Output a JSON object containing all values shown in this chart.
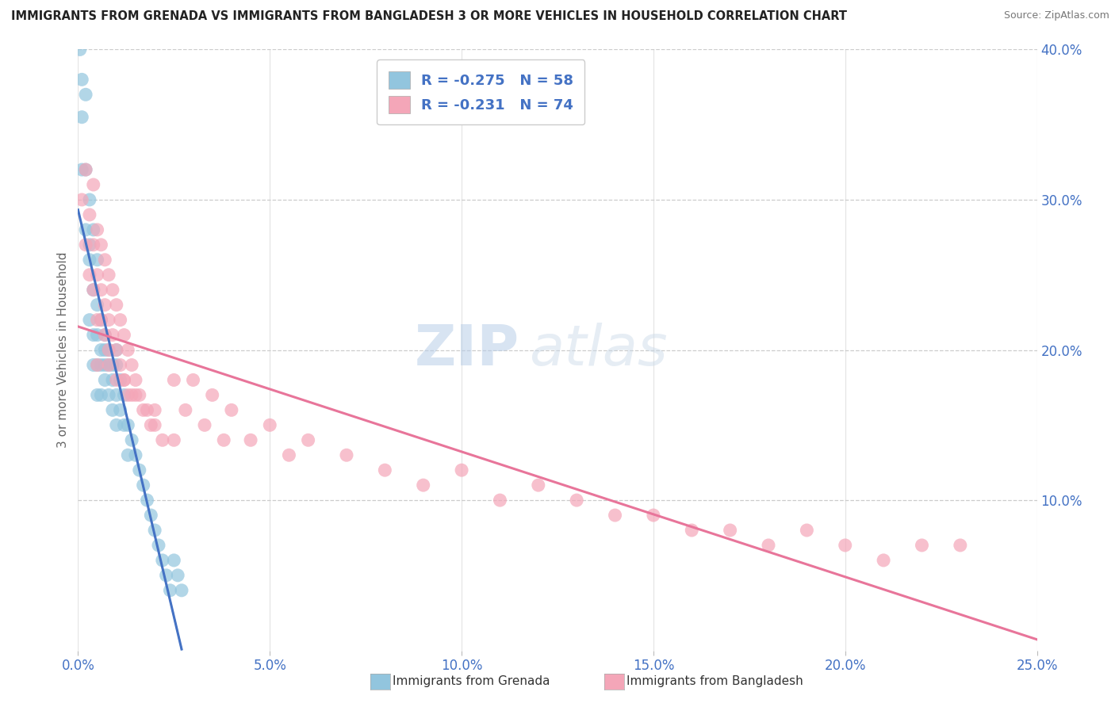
{
  "title": "IMMIGRANTS FROM GRENADA VS IMMIGRANTS FROM BANGLADESH 3 OR MORE VEHICLES IN HOUSEHOLD CORRELATION CHART",
  "source": "Source: ZipAtlas.com",
  "ylabel": "3 or more Vehicles in Household",
  "xmin": 0.0,
  "xmax": 0.25,
  "ymin": 0.0,
  "ymax": 0.4,
  "grenada_R": -0.275,
  "grenada_N": 58,
  "bangladesh_R": -0.231,
  "bangladesh_N": 74,
  "color_grenada": "#92C5DE",
  "color_bangladesh": "#F4A6B8",
  "color_text_blue": "#4472C4",
  "color_reg_blue": "#4472C4",
  "color_reg_pink": "#E8759A",
  "color_dashed": "#AAAAAA",
  "watermark_zip": "ZIP",
  "watermark_atlas": "atlas",
  "grenada_x": [
    0.0005,
    0.001,
    0.001,
    0.001,
    0.002,
    0.002,
    0.002,
    0.003,
    0.003,
    0.003,
    0.003,
    0.004,
    0.004,
    0.004,
    0.004,
    0.005,
    0.005,
    0.005,
    0.005,
    0.005,
    0.006,
    0.006,
    0.006,
    0.006,
    0.007,
    0.007,
    0.007,
    0.007,
    0.008,
    0.008,
    0.008,
    0.009,
    0.009,
    0.009,
    0.01,
    0.01,
    0.01,
    0.01,
    0.011,
    0.011,
    0.012,
    0.012,
    0.013,
    0.013,
    0.014,
    0.015,
    0.016,
    0.017,
    0.018,
    0.019,
    0.02,
    0.021,
    0.022,
    0.023,
    0.024,
    0.025,
    0.026,
    0.027
  ],
  "grenada_y": [
    0.4,
    0.38,
    0.355,
    0.32,
    0.37,
    0.32,
    0.28,
    0.3,
    0.27,
    0.26,
    0.22,
    0.28,
    0.24,
    0.21,
    0.19,
    0.26,
    0.23,
    0.21,
    0.19,
    0.17,
    0.22,
    0.2,
    0.19,
    0.17,
    0.21,
    0.2,
    0.19,
    0.18,
    0.2,
    0.19,
    0.17,
    0.19,
    0.18,
    0.16,
    0.2,
    0.19,
    0.17,
    0.15,
    0.18,
    0.16,
    0.17,
    0.15,
    0.15,
    0.13,
    0.14,
    0.13,
    0.12,
    0.11,
    0.1,
    0.09,
    0.08,
    0.07,
    0.06,
    0.05,
    0.04,
    0.06,
    0.05,
    0.04
  ],
  "bangladesh_x": [
    0.001,
    0.002,
    0.002,
    0.003,
    0.003,
    0.004,
    0.004,
    0.004,
    0.005,
    0.005,
    0.005,
    0.006,
    0.006,
    0.006,
    0.007,
    0.007,
    0.007,
    0.008,
    0.008,
    0.008,
    0.009,
    0.009,
    0.01,
    0.01,
    0.01,
    0.011,
    0.011,
    0.012,
    0.012,
    0.013,
    0.013,
    0.014,
    0.014,
    0.015,
    0.016,
    0.017,
    0.018,
    0.019,
    0.02,
    0.022,
    0.025,
    0.028,
    0.03,
    0.033,
    0.035,
    0.038,
    0.04,
    0.045,
    0.05,
    0.055,
    0.06,
    0.07,
    0.08,
    0.09,
    0.1,
    0.11,
    0.12,
    0.13,
    0.14,
    0.15,
    0.16,
    0.17,
    0.18,
    0.19,
    0.2,
    0.21,
    0.22,
    0.23,
    0.005,
    0.008,
    0.012,
    0.015,
    0.02,
    0.025
  ],
  "bangladesh_y": [
    0.3,
    0.32,
    0.27,
    0.29,
    0.25,
    0.31,
    0.27,
    0.24,
    0.28,
    0.25,
    0.22,
    0.27,
    0.24,
    0.22,
    0.26,
    0.23,
    0.21,
    0.25,
    0.22,
    0.19,
    0.24,
    0.21,
    0.23,
    0.2,
    0.18,
    0.22,
    0.19,
    0.21,
    0.18,
    0.2,
    0.17,
    0.19,
    0.17,
    0.18,
    0.17,
    0.16,
    0.16,
    0.15,
    0.15,
    0.14,
    0.18,
    0.16,
    0.18,
    0.15,
    0.17,
    0.14,
    0.16,
    0.14,
    0.15,
    0.13,
    0.14,
    0.13,
    0.12,
    0.11,
    0.12,
    0.1,
    0.11,
    0.1,
    0.09,
    0.09,
    0.08,
    0.08,
    0.07,
    0.08,
    0.07,
    0.06,
    0.07,
    0.07,
    0.19,
    0.2,
    0.18,
    0.17,
    0.16,
    0.14
  ]
}
